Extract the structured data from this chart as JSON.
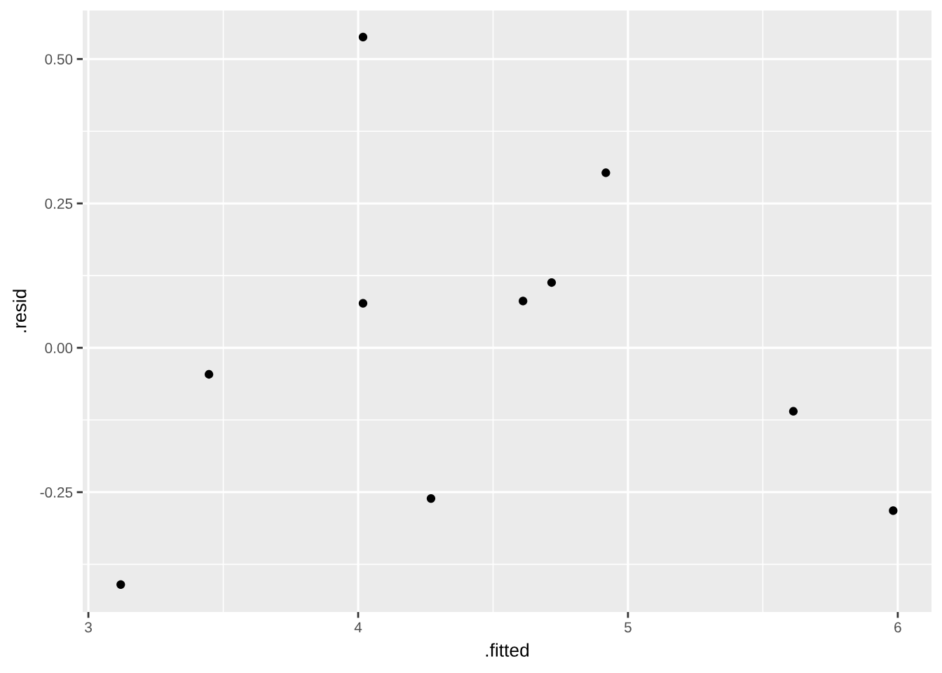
{
  "chart_data": {
    "type": "scatter",
    "xlabel": ".fitted",
    "ylabel": ".resid",
    "x": [
      3.12,
      3.447,
      4.018,
      4.018,
      4.27,
      4.611,
      4.717,
      4.918,
      5.613,
      5.983
    ],
    "series": [
      {
        "color": "#000000",
        "values": [
          -0.41,
          -0.046,
          0.538,
          0.077,
          -0.261,
          0.081,
          0.113,
          0.303,
          -0.11,
          -0.282
        ]
      }
    ],
    "xlim": [
      2.979,
      6.125
    ],
    "ylim": [
      -0.4575,
      0.584
    ],
    "xticks": [
      3,
      4,
      5,
      6
    ],
    "yticks": [
      -0.25,
      {
        "value": 0,
        "label": "0.00"
      },
      0.25,
      {
        "value": 0.5,
        "label": "0.50"
      }
    ],
    "grid": true,
    "marker": "circle"
  }
}
